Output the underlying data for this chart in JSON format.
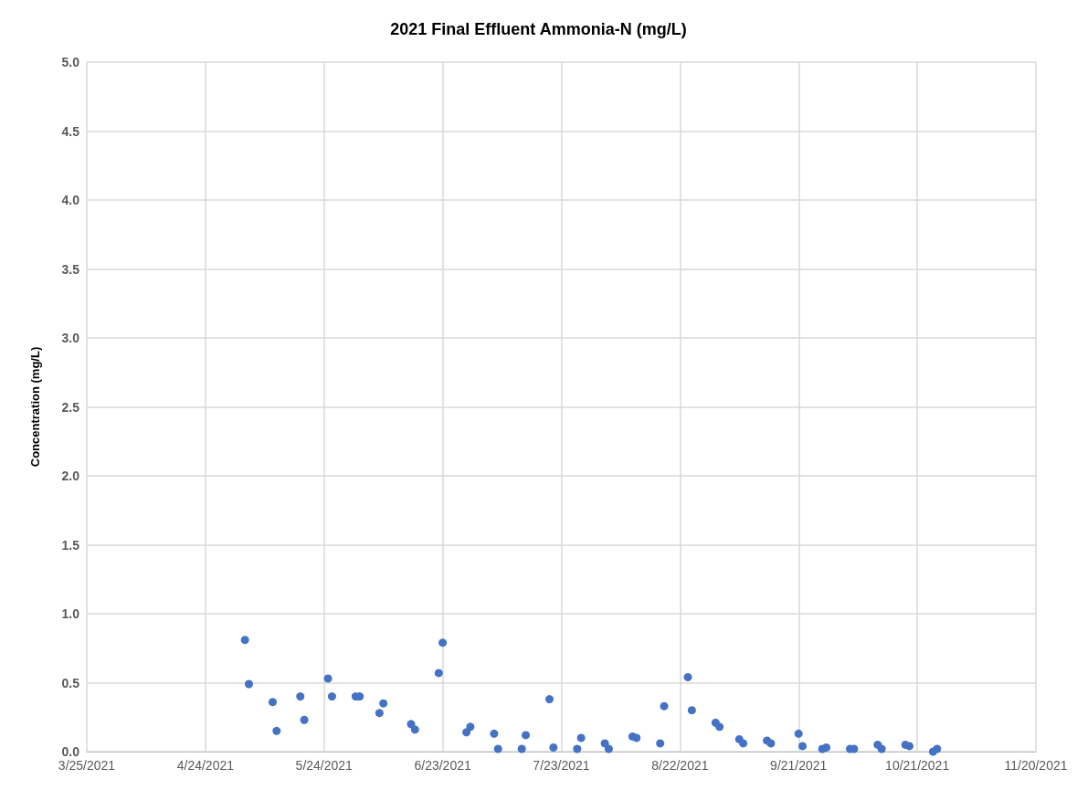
{
  "chart_data": {
    "type": "scatter",
    "title": "2021 Final Effluent Ammonia-N (mg/L)",
    "ylabel": "Concentration (mg/L)",
    "x": [
      "2021-05-04",
      "2021-05-05",
      "2021-05-11",
      "2021-05-12",
      "2021-05-18",
      "2021-05-19",
      "2021-05-25",
      "2021-05-26",
      "2021-06-01",
      "2021-06-02",
      "2021-06-07",
      "2021-06-08",
      "2021-06-15",
      "2021-06-16",
      "2021-06-22",
      "2021-06-23",
      "2021-06-29",
      "2021-06-30",
      "2021-07-06",
      "2021-07-07",
      "2021-07-13",
      "2021-07-14",
      "2021-07-20",
      "2021-07-21",
      "2021-07-27",
      "2021-07-28",
      "2021-08-03",
      "2021-08-04",
      "2021-08-10",
      "2021-08-11",
      "2021-08-17",
      "2021-08-18",
      "2021-08-24",
      "2021-08-25",
      "2021-08-31",
      "2021-09-01",
      "2021-09-06",
      "2021-09-07",
      "2021-09-13",
      "2021-09-14",
      "2021-09-21",
      "2021-09-22",
      "2021-09-27",
      "2021-09-28",
      "2021-10-04",
      "2021-10-05",
      "2021-10-11",
      "2021-10-12",
      "2021-10-18",
      "2021-10-19",
      "2021-10-25",
      "2021-10-26"
    ],
    "series": [
      {
        "color": "#4472c4",
        "values": [
          0.81,
          0.49,
          0.36,
          0.15,
          0.4,
          0.23,
          0.53,
          0.4,
          0.4,
          0.4,
          0.28,
          0.35,
          0.2,
          0.16,
          0.57,
          0.79,
          0.14,
          0.18,
          0.13,
          0.02,
          0.02,
          0.12,
          0.38,
          0.03,
          0.02,
          0.1,
          0.06,
          0.02,
          0.11,
          0.1,
          0.06,
          0.33,
          0.54,
          0.3,
          0.21,
          0.18,
          0.09,
          0.06,
          0.08,
          0.06,
          0.13,
          0.04,
          0.02,
          0.03,
          0.02,
          0.02,
          0.05,
          0.02,
          0.05,
          0.04,
          0.0,
          0.02
        ]
      }
    ],
    "xlim": [
      "2021-03-25",
      "2021-11-20"
    ],
    "xticks": [
      {
        "value": "2021-03-25",
        "label": "3/25/2021"
      },
      {
        "value": "2021-04-24",
        "label": "4/24/2021"
      },
      {
        "value": "2021-05-24",
        "label": "5/24/2021"
      },
      {
        "value": "2021-06-23",
        "label": "6/23/2021"
      },
      {
        "value": "2021-07-23",
        "label": "7/23/2021"
      },
      {
        "value": "2021-08-22",
        "label": "8/22/2021"
      },
      {
        "value": "2021-09-21",
        "label": "9/21/2021"
      },
      {
        "value": "2021-10-21",
        "label": "10/21/2021"
      },
      {
        "value": "2021-11-20",
        "label": "11/20/2021"
      }
    ],
    "ylim": [
      0,
      5
    ],
    "yticks": [
      {
        "value": 0,
        "label": "0.0"
      },
      {
        "value": 0.5,
        "label": "0.5"
      },
      {
        "value": 1,
        "label": "1.0"
      },
      {
        "value": 1.5,
        "label": "1.5"
      },
      {
        "value": 2,
        "label": "2.0"
      },
      {
        "value": 2.5,
        "label": "2.5"
      },
      {
        "value": 3,
        "label": "3.0"
      },
      {
        "value": 3.5,
        "label": "3.5"
      },
      {
        "value": 4,
        "label": "4.0"
      },
      {
        "value": 4.5,
        "label": "4.5"
      },
      {
        "value": 5,
        "label": "5.0"
      }
    ],
    "grid": true,
    "marker": "circle"
  }
}
